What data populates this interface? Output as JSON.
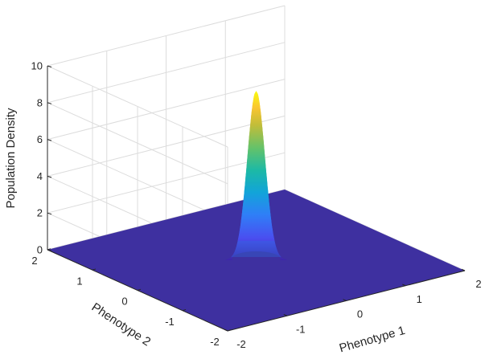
{
  "chart_data": {
    "type": "surface",
    "title": "",
    "xlabel": "Phenotype 1",
    "ylabel": "Phenotype 2",
    "zlabel": "Population Density",
    "xlim": [
      -2,
      2
    ],
    "ylim": [
      -2,
      2
    ],
    "zlim": [
      0,
      10
    ],
    "x_ticks": [
      "-2",
      "-1",
      "0",
      "1",
      "2"
    ],
    "y_ticks": [
      "-2",
      "-1",
      "0",
      "1",
      "2"
    ],
    "z_ticks": [
      "0",
      "2",
      "4",
      "6",
      "8",
      "10"
    ],
    "grid": true,
    "colormap": "parula",
    "surface": {
      "shape": "gaussian",
      "peak_x": 0,
      "peak_y": 0,
      "peak_value": 9.2,
      "baseline": 0
    }
  },
  "colors": {
    "floor": "#3e30a0",
    "axis": "#262626",
    "grid": "#dcdcdc"
  }
}
